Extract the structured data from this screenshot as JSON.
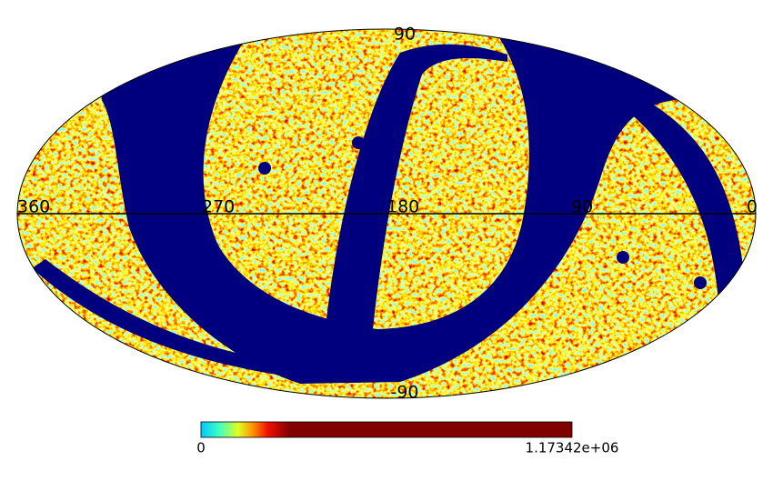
{
  "map": {
    "longitude_labels": [
      360,
      270,
      180,
      90,
      0
    ],
    "latitude_labels": [
      90,
      -90
    ]
  },
  "colorbar": {
    "min": 0,
    "max": {
      "value": 1173420,
      "label": "1.17342e+06"
    }
  }
}
